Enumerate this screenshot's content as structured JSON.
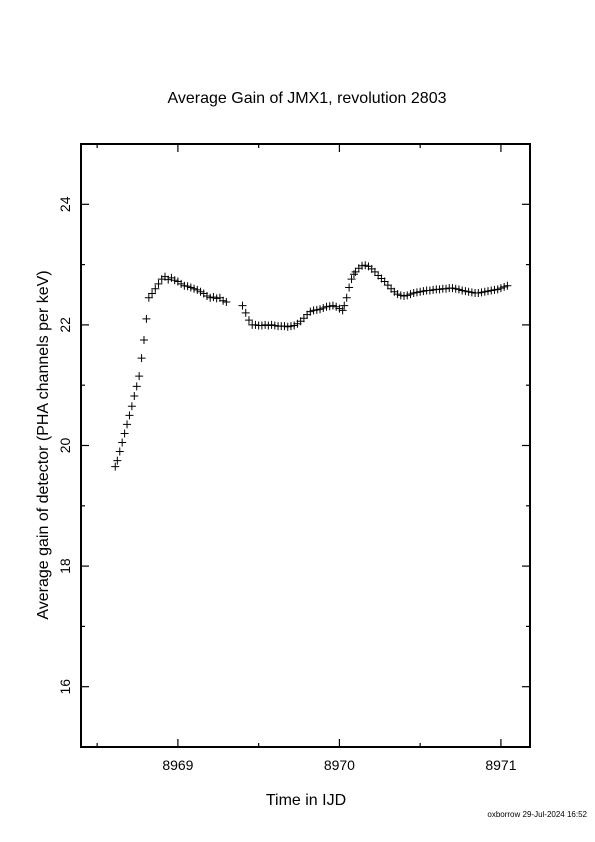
{
  "chart_data": {
    "type": "scatter",
    "title": "Average Gain of JMX1, revolution 2803",
    "xlabel": "Time in IJD",
    "ylabel": "Average gain of detector (PHA channels per keV)",
    "xlim": [
      8968.4,
      8971.18
    ],
    "ylim": [
      15.0,
      25.0
    ],
    "x_ticks": [
      8969,
      8970,
      8971
    ],
    "y_ticks": [
      16,
      18,
      20,
      22,
      24
    ],
    "grid": false,
    "marker": "plus",
    "series": [
      {
        "x": [
          8968.612,
          8968.625,
          8968.64,
          8968.655,
          8968.67,
          8968.685,
          8968.7,
          8968.715,
          8968.73,
          8968.745,
          8968.76,
          8968.775,
          8968.79,
          8968.805,
          8968.82,
          8968.84,
          8968.86,
          8968.88,
          8968.9,
          8968.92,
          8968.94,
          8968.96,
          8968.98,
          8969.0,
          8969.02,
          8969.04,
          8969.06,
          8969.08,
          8969.1,
          8969.12,
          8969.14,
          8969.16,
          8969.18,
          8969.2,
          8969.22,
          8969.24,
          8969.26,
          8969.28,
          8969.3,
          8969.4,
          8969.42,
          8969.44,
          8969.46,
          8969.48,
          8969.5,
          8969.52,
          8969.54,
          8969.56,
          8969.58,
          8969.6,
          8969.62,
          8969.64,
          8969.66,
          8969.68,
          8969.7,
          8969.72,
          8969.74,
          8969.76,
          8969.78,
          8969.8,
          8969.82,
          8969.84,
          8969.86,
          8969.88,
          8969.9,
          8969.92,
          8969.94,
          8969.96,
          8969.98,
          8970.0,
          8970.02,
          8970.03,
          8970.045,
          8970.06,
          8970.075,
          8970.09,
          8970.1,
          8970.12,
          8970.14,
          8970.16,
          8970.18,
          8970.2,
          8970.22,
          8970.24,
          8970.26,
          8970.28,
          8970.3,
          8970.32,
          8970.34,
          8970.36,
          8970.38,
          8970.4,
          8970.42,
          8970.44,
          8970.46,
          8970.48,
          8970.5,
          8970.52,
          8970.54,
          8970.56,
          8970.58,
          8970.6,
          8970.62,
          8970.64,
          8970.66,
          8970.68,
          8970.7,
          8970.72,
          8970.74,
          8970.76,
          8970.78,
          8970.8,
          8970.82,
          8970.84,
          8970.86,
          8970.88,
          8970.9,
          8970.92,
          8970.94,
          8970.96,
          8970.98,
          8971.0,
          8971.02,
          8971.04
        ],
        "y": [
          19.65,
          19.75,
          19.9,
          20.05,
          20.2,
          20.35,
          20.5,
          20.65,
          20.82,
          20.98,
          21.15,
          21.45,
          21.75,
          22.1,
          22.45,
          22.52,
          22.6,
          22.68,
          22.76,
          22.8,
          22.75,
          22.78,
          22.74,
          22.72,
          22.68,
          22.65,
          22.64,
          22.62,
          22.6,
          22.58,
          22.55,
          22.52,
          22.48,
          22.45,
          22.46,
          22.44,
          22.45,
          22.4,
          22.38,
          22.32,
          22.2,
          22.08,
          22.0,
          22.0,
          21.99,
          21.99,
          22.0,
          21.99,
          22.0,
          21.99,
          21.98,
          21.98,
          21.98,
          21.97,
          21.98,
          21.99,
          22.02,
          22.06,
          22.11,
          22.17,
          22.22,
          22.24,
          22.25,
          22.26,
          22.28,
          22.3,
          22.31,
          22.32,
          22.3,
          22.27,
          22.24,
          22.32,
          22.45,
          22.62,
          22.76,
          22.84,
          22.88,
          22.94,
          22.98,
          22.99,
          22.97,
          22.93,
          22.88,
          22.82,
          22.77,
          22.72,
          22.66,
          22.6,
          22.55,
          22.51,
          22.49,
          22.48,
          22.49,
          22.51,
          22.53,
          22.54,
          22.55,
          22.56,
          22.57,
          22.57,
          22.58,
          22.59,
          22.59,
          22.6,
          22.6,
          22.61,
          22.61,
          22.6,
          22.59,
          22.57,
          22.56,
          22.55,
          22.54,
          22.53,
          22.53,
          22.54,
          22.55,
          22.56,
          22.57,
          22.58,
          22.59,
          22.61,
          22.63,
          22.65
        ]
      }
    ]
  },
  "footer": "oxborrow 29-Jul-2024 16:52"
}
